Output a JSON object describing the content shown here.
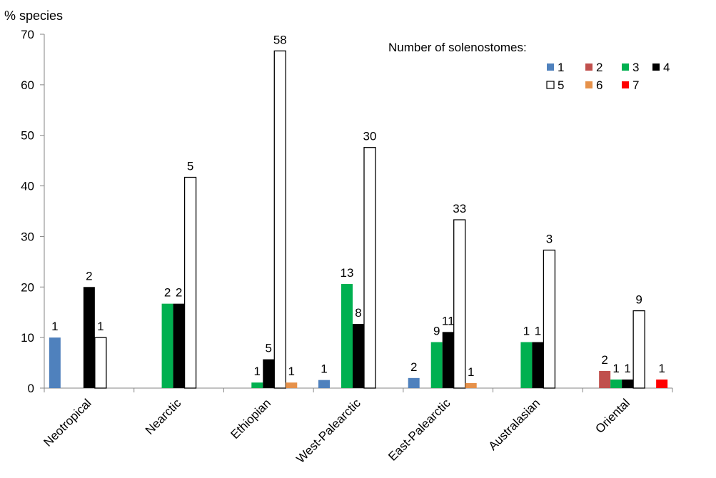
{
  "chart_data": {
    "type": "bar",
    "ylabel": "% species",
    "ylim": [
      0,
      70
    ],
    "yticks": [
      "0",
      "10",
      "20",
      "30",
      "40",
      "50",
      "60",
      "70"
    ],
    "categories": [
      "Neotropical",
      "Nearctic",
      "Ethiopian",
      "West-Palearctic",
      "East-Palearctic",
      "Australasian",
      "Oriental"
    ],
    "legend_title": "Number of solenostomes:",
    "legend_position": "top-right",
    "series": [
      {
        "name": "1",
        "color": "#4f81bd",
        "values": [
          10,
          null,
          null,
          1.6,
          2,
          null,
          null
        ],
        "labels": [
          "1",
          "",
          "",
          "1",
          "2",
          "",
          ""
        ]
      },
      {
        "name": "2",
        "color": "#c0504d",
        "values": [
          null,
          null,
          null,
          null,
          null,
          null,
          3.4
        ],
        "labels": [
          "",
          "",
          "",
          "",
          "",
          "",
          "2"
        ]
      },
      {
        "name": "3",
        "color": "#00b050",
        "values": [
          null,
          16.7,
          1.1,
          20.6,
          9.1,
          9.1,
          1.7
        ],
        "labels": [
          "",
          "2",
          "1",
          "13",
          "9",
          "1",
          "1"
        ]
      },
      {
        "name": "4",
        "color": "#000000",
        "values": [
          20,
          16.7,
          5.7,
          12.7,
          11.1,
          9.1,
          1.7
        ],
        "labels": [
          "2",
          "2",
          "5",
          "8",
          "11",
          "1",
          "1"
        ]
      },
      {
        "name": "5",
        "color": "#ffffff",
        "values": [
          10,
          41.7,
          66.7,
          47.6,
          33.3,
          27.3,
          15.3
        ],
        "labels": [
          "1",
          "5",
          "58",
          "30",
          "33",
          "3",
          "9"
        ]
      },
      {
        "name": "6",
        "color": "#e6914a",
        "values": [
          null,
          null,
          1.1,
          null,
          1,
          null,
          null
        ],
        "labels": [
          "",
          "",
          "1",
          "",
          "1",
          "",
          ""
        ]
      },
      {
        "name": "7",
        "color": "#ff0000",
        "values": [
          null,
          null,
          null,
          null,
          null,
          null,
          1.7
        ],
        "labels": [
          "",
          "",
          "",
          "",
          "",
          "",
          "1"
        ]
      }
    ]
  }
}
